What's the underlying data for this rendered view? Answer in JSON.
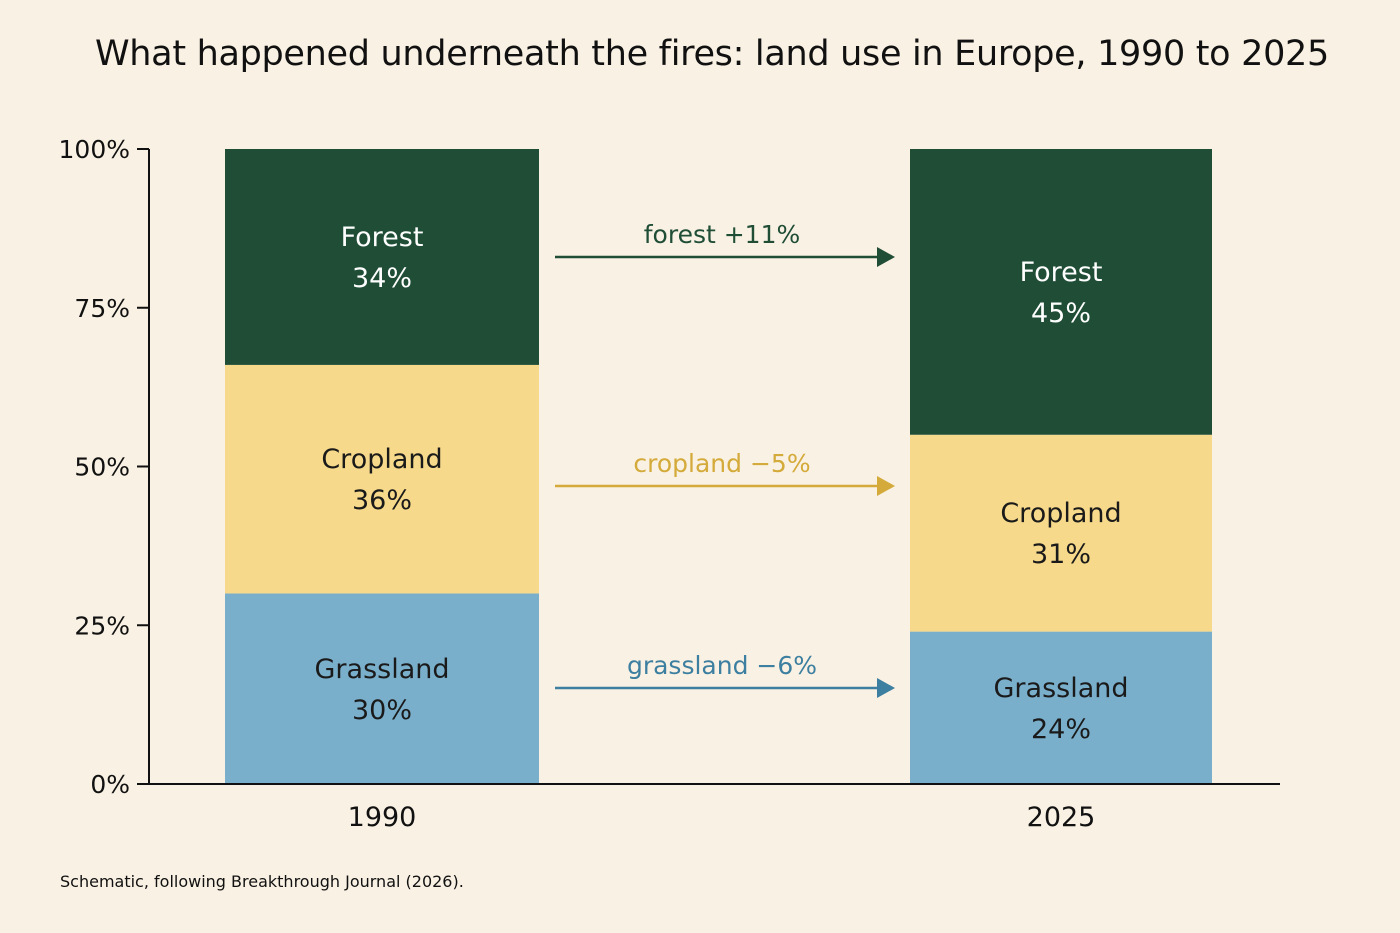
{
  "chart_data": {
    "type": "bar",
    "stacked": true,
    "title": "What happened underneath the fires: land use in Europe, 1990 to 2025",
    "xlabel": "",
    "ylabel": "",
    "ylim": [
      0,
      100
    ],
    "grid": false,
    "categories": [
      "1990",
      "2025"
    ],
    "y_ticks": [
      {
        "value": 0,
        "label": "0%"
      },
      {
        "value": 25,
        "label": "25%"
      },
      {
        "value": 50,
        "label": "50%"
      },
      {
        "value": 75,
        "label": "75%"
      },
      {
        "value": 100,
        "label": "100%"
      }
    ],
    "series": [
      {
        "key": "grassland",
        "name": "Grassland",
        "values": [
          30,
          24
        ],
        "labels": [
          "30%",
          "24%"
        ],
        "color": "#7aafcc",
        "text_color": "#1a1a1a"
      },
      {
        "key": "cropland",
        "name": "Cropland",
        "values": [
          36,
          31
        ],
        "labels": [
          "36%",
          "31%"
        ],
        "color": "#f6d98a",
        "text_color": "#1a1a1a"
      },
      {
        "key": "forest",
        "name": "Forest",
        "values": [
          34,
          45
        ],
        "labels": [
          "34%",
          "45%"
        ],
        "color": "#1f4d36",
        "text_color": "#ffffff"
      }
    ],
    "annotations": [
      {
        "series": "forest",
        "text": "forest +11%",
        "color": "#1f4d36"
      },
      {
        "series": "cropland",
        "text": "cropland −5%",
        "color": "#d4aa3a"
      },
      {
        "series": "grassland",
        "text": "grassland −6%",
        "color": "#3d7fa0"
      }
    ],
    "footnote": "Schematic, following Breakthrough Journal (2026)."
  }
}
